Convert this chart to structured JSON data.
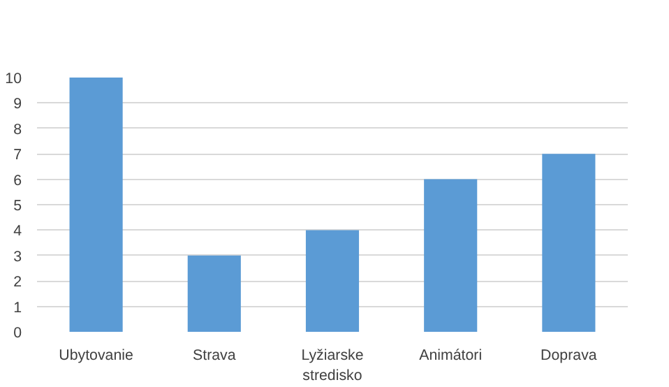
{
  "chart_data": {
    "type": "bar",
    "categories": [
      "Ubytovanie",
      "Strava",
      "Lyžiarske stredisko",
      "Animátori",
      "Doprava"
    ],
    "values": [
      10,
      3,
      4,
      6,
      7
    ],
    "color": "#5b9bd5",
    "ylim": [
      0,
      10
    ],
    "yticks": [
      0,
      1,
      2,
      3,
      4,
      5,
      6,
      7,
      8,
      9,
      10
    ],
    "grid": "y"
  }
}
